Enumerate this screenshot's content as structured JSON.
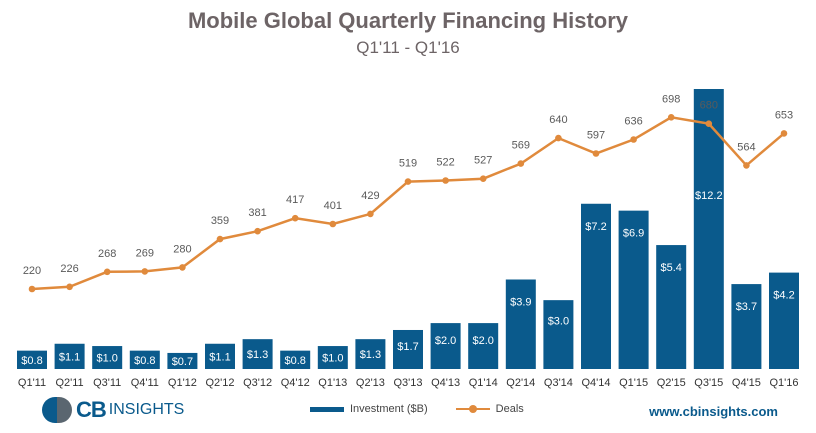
{
  "chart_data": {
    "type": "bar",
    "title": "Mobile Global Quarterly Financing History",
    "subtitle": "Q1'11 - Q1'16",
    "categories": [
      "Q1'11",
      "Q2'11",
      "Q3'11",
      "Q4'11",
      "Q1'12",
      "Q2'12",
      "Q3'12",
      "Q4'12",
      "Q1'13",
      "Q2'13",
      "Q3'13",
      "Q4'13",
      "Q1'14",
      "Q2'14",
      "Q3'14",
      "Q4'14",
      "Q1'15",
      "Q2'15",
      "Q3'15",
      "Q4'15",
      "Q1'16"
    ],
    "series": [
      {
        "name": "Investment ($B)",
        "type": "bar",
        "values": [
          0.8,
          1.1,
          1.0,
          0.8,
          0.7,
          1.1,
          1.3,
          0.8,
          1.0,
          1.3,
          1.7,
          2.0,
          2.0,
          3.9,
          3.0,
          7.2,
          6.9,
          5.4,
          12.2,
          3.7,
          4.2
        ],
        "labels": [
          "$0.8",
          "$1.1",
          "$1.0",
          "$0.8",
          "$0.7",
          "$1.1",
          "$1.3",
          "$0.8",
          "$1.0",
          "$1.3",
          "$1.7",
          "$2.0",
          "$2.0",
          "$3.9",
          "$3.0",
          "$7.2",
          "$6.9",
          "$5.4",
          "$12.2",
          "$3.7",
          "$4.2"
        ]
      },
      {
        "name": "Deals",
        "type": "line",
        "values": [
          220,
          226,
          268,
          269,
          280,
          359,
          381,
          417,
          401,
          429,
          519,
          522,
          527,
          569,
          640,
          597,
          636,
          698,
          680,
          564,
          653
        ]
      }
    ],
    "legend": [
      "Investment ($B)",
      "Deals"
    ],
    "legend_position": "bottom-center",
    "grid": false
  },
  "branding": {
    "logo_cb": "CB",
    "logo_insights": "INSIGHTS",
    "website": "www.cbinsights.com"
  },
  "colors": {
    "bar": "#0a5a8c",
    "line": "#e08a3c"
  }
}
